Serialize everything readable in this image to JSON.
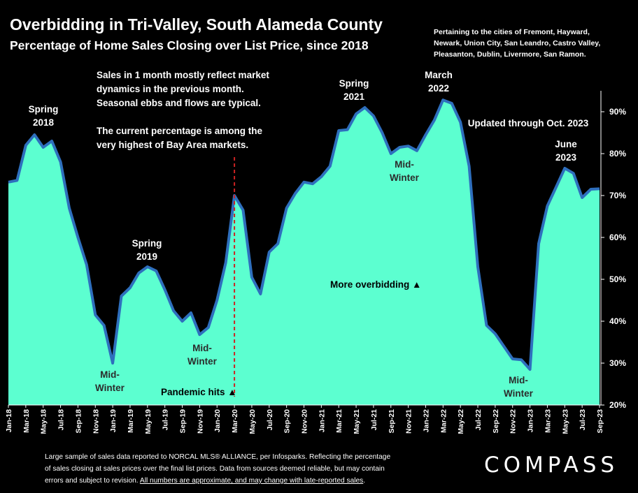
{
  "header": {
    "title": "Overbidding in Tri-Valley, South Alameda County",
    "subtitle": "Percentage of Home Sales Closing over List Price, since 2018",
    "cities_lines": [
      "Pertaining to the cities of Fremont, Hayward,",
      "Newark, Union City, San Leandro, Castro Valley,",
      "Pleasanton, Dublin, Livermore, San Ramon."
    ]
  },
  "footer": {
    "line1": "Large sample of sales data reported to NORCAL MLS® ALLIANCE, per Infosparks. Reflecting the percentage",
    "line2": "of sales closing at sales prices over the final list prices. Data from sources deemed reliable, but may contain",
    "line3_plain": "errors and subject to revision. ",
    "line3_underlined": "All numbers are approximate, and may change with late-reported sales",
    "line3_end": "."
  },
  "logo": {
    "text": "COMPASS"
  },
  "chart_data": {
    "type": "area",
    "x_tick_labels": [
      "Jan-18",
      "Mar-18",
      "May-18",
      "Jul-18",
      "Sep-18",
      "Nov-18",
      "Jan-19",
      "Mar-19",
      "May-19",
      "Jul-19",
      "Sep-19",
      "Nov-19",
      "Jan-20",
      "Mar-20",
      "May-20",
      "Jul-20",
      "Sep-20",
      "Nov-20",
      "Jan-21",
      "Mar-21",
      "May-21",
      "Jul-21",
      "Sep-21",
      "Nov-21",
      "Jan-22",
      "Mar-22",
      "May-22",
      "Jul-22",
      "Sep-22",
      "Nov-22",
      "Jan-23",
      "Mar-23",
      "May-23",
      "Jul-23",
      "Sep-23"
    ],
    "y_tick_labels": [
      "20%",
      "30%",
      "40%",
      "50%",
      "60%",
      "70%",
      "80%",
      "90%"
    ],
    "ylim": [
      20,
      95
    ],
    "y_unit": "%",
    "x_start": "2018-01",
    "values": [
      73.2,
      73.6,
      82,
      84.5,
      81.5,
      83,
      78,
      67,
      60,
      53.5,
      41.5,
      39,
      30,
      46,
      48,
      51.5,
      53,
      52,
      47.5,
      42.5,
      40,
      42,
      36.8,
      38.5,
      45,
      54,
      70,
      66.5,
      50.5,
      46.5,
      56.5,
      58.5,
      67,
      70.5,
      73.2,
      72.8,
      74.5,
      77,
      85.5,
      85.7,
      89.5,
      91,
      89,
      85,
      80,
      81.5,
      81.8,
      80.7,
      84.5,
      88,
      92.8,
      92,
      87.5,
      77,
      53,
      39,
      37,
      34,
      31,
      30.8,
      28.5,
      58.5,
      67.5,
      72,
      76.5,
      75.3,
      69.5,
      71.5,
      71.6
    ],
    "series_color": "#5cffd0",
    "line_color": "#2e6fbd",
    "annotations": [
      {
        "id": "spring-2018",
        "lines": [
          "Spring",
          "2018"
        ]
      },
      {
        "id": "mid-winter-2019",
        "lines": [
          "Mid-",
          "Winter"
        ]
      },
      {
        "id": "spring-2019",
        "lines": [
          "Spring",
          "2019"
        ]
      },
      {
        "id": "mid-winter-2020",
        "lines": [
          "Mid-",
          "Winter"
        ]
      },
      {
        "id": "pandemic",
        "lines": [
          "Pandemic hits ▲"
        ]
      },
      {
        "id": "spring-2021",
        "lines": [
          "Spring",
          "2021"
        ]
      },
      {
        "id": "mid-winter-2022",
        "lines": [
          "Mid-",
          "Winter"
        ]
      },
      {
        "id": "march-2022",
        "lines": [
          "March",
          "2022"
        ]
      },
      {
        "id": "june-2023",
        "lines": [
          "June",
          "2023"
        ]
      },
      {
        "id": "mid-winter-2023",
        "lines": [
          "Mid-",
          "Winter"
        ]
      },
      {
        "id": "more-overbidding",
        "lines": [
          "More overbidding ▲"
        ]
      },
      {
        "id": "updated",
        "lines": [
          "Updated through Oct. 2023"
        ]
      }
    ],
    "note_lines": [
      "Sales in 1 month mostly reflect market",
      "dynamics in the previous month.",
      "Seasonal ebbs and flows are typical.",
      "",
      "The current percentage is among the",
      "very highest of Bay Area markets."
    ],
    "pandemic_marker_index": 26
  }
}
